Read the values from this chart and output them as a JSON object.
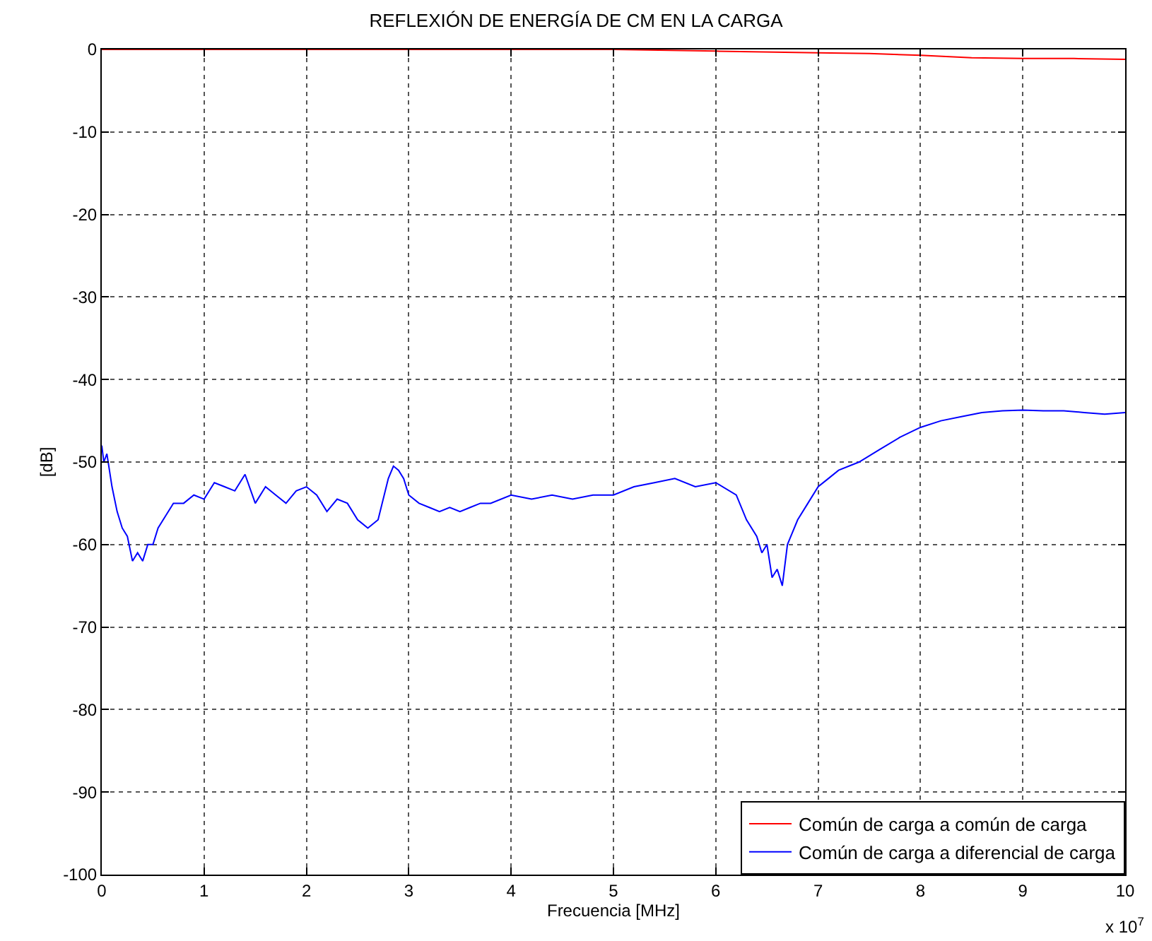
{
  "chart_data": {
    "type": "line",
    "title": "REFLEXIÓN DE ENERGÍA DE CM EN LA CARGA",
    "xlabel": "Frecuencia [MHz]",
    "ylabel": "[dB]",
    "xlim": [
      0,
      10
    ],
    "xticks": [
      0,
      1,
      2,
      3,
      4,
      5,
      6,
      7,
      8,
      9,
      10
    ],
    "ylim": [
      -100,
      0
    ],
    "yticks": [
      -100,
      -90,
      -80,
      -70,
      -60,
      -50,
      -40,
      -30,
      -20,
      -10,
      0
    ],
    "grid": true,
    "legend": "bottom right",
    "annotations": [
      "x 10$^{7}$"
    ],
    "series": [
      {
        "name": "Común de carga a común de carga",
        "color": "#ff0000",
        "x": [
          0,
          1,
          2,
          3,
          4,
          5,
          6,
          7,
          7.5,
          8,
          8.5,
          9,
          9.5,
          10
        ],
        "values": [
          0,
          0,
          0,
          0,
          0,
          0,
          -0.2,
          -0.4,
          -0.5,
          -0.7,
          -1,
          -1.1,
          -1.1,
          -1.2
        ]
      },
      {
        "name": "Común de carga a diferencial de carga",
        "color": "#0000ff",
        "x": [
          0,
          0.02,
          0.05,
          0.1,
          0.15,
          0.2,
          0.25,
          0.3,
          0.35,
          0.4,
          0.45,
          0.5,
          0.55,
          0.6,
          0.7,
          0.8,
          0.9,
          1.0,
          1.1,
          1.2,
          1.3,
          1.4,
          1.5,
          1.6,
          1.7,
          1.8,
          1.9,
          2.0,
          2.1,
          2.2,
          2.3,
          2.4,
          2.5,
          2.6,
          2.7,
          2.8,
          2.85,
          2.9,
          2.95,
          3.0,
          3.1,
          3.2,
          3.3,
          3.4,
          3.5,
          3.6,
          3.7,
          3.8,
          4.0,
          4.2,
          4.4,
          4.6,
          4.8,
          5.0,
          5.2,
          5.4,
          5.6,
          5.8,
          6.0,
          6.2,
          6.3,
          6.4,
          6.45,
          6.5,
          6.55,
          6.6,
          6.65,
          6.7,
          6.8,
          6.9,
          7.0,
          7.1,
          7.2,
          7.4,
          7.6,
          7.8,
          8.0,
          8.2,
          8.4,
          8.6,
          8.8,
          9.0,
          9.2,
          9.4,
          9.6,
          9.8,
          10
        ],
        "values": [
          -48,
          -50,
          -49,
          -53,
          -56,
          -58,
          -59,
          -62,
          -61,
          -62,
          -60,
          -60,
          -58,
          -57,
          -55,
          -55,
          -54,
          -54.5,
          -52.5,
          -53,
          -53.5,
          -51.5,
          -55,
          -53,
          -54,
          -55,
          -53.5,
          -53,
          -54,
          -56,
          -54.5,
          -55,
          -57,
          -58,
          -57,
          -52,
          -50.5,
          -51,
          -52,
          -54,
          -55,
          -55.5,
          -56,
          -55.5,
          -56,
          -55.5,
          -55,
          -55,
          -54,
          -54.5,
          -54,
          -54.5,
          -54,
          -54,
          -53,
          -52.5,
          -52,
          -53,
          -52.5,
          -54,
          -57,
          -59,
          -61,
          -60,
          -64,
          -63,
          -65,
          -60,
          -57,
          -55,
          -53,
          -52,
          -51,
          -50,
          -48.5,
          -47,
          -45.8,
          -45,
          -44.5,
          -44,
          -43.8,
          -43.7,
          -43.8,
          -43.8,
          -44,
          -44.2,
          -44
        ]
      }
    ]
  }
}
